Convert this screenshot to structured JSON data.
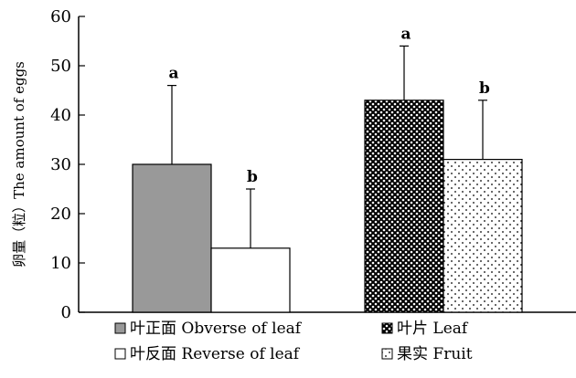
{
  "chart_data": {
    "type": "bar",
    "ylabel": "卵量（粒）The amount of eggs",
    "xlabel": "",
    "ylim": [
      0,
      60
    ],
    "yticks": [
      0,
      10,
      20,
      30,
      40,
      50,
      60
    ],
    "grid": false,
    "legend_placement": "bottom",
    "bars": [
      {
        "name": "叶正面 Obverse of leaf",
        "group": 1,
        "value": 30,
        "error": 16,
        "letter": "a",
        "fill": "gray"
      },
      {
        "name": "叶反面 Reverse of leaf",
        "group": 1,
        "value": 13,
        "error": 12,
        "letter": "b",
        "fill": "white"
      },
      {
        "name": "叶片 Leaf",
        "group": 2,
        "value": 43,
        "error": 11,
        "letter": "a",
        "fill": "crosshatch"
      },
      {
        "name": "果实 Fruit",
        "group": 2,
        "value": 31,
        "error": 12,
        "letter": "b",
        "fill": "dots"
      }
    ],
    "legend": [
      {
        "label": "叶正面 Obverse of leaf",
        "fill": "gray"
      },
      {
        "label": "叶片 Leaf",
        "fill": "crosshatch"
      },
      {
        "label": "叶反面 Reverse of leaf",
        "fill": "white"
      },
      {
        "label": "果实 Fruit",
        "fill": "dots"
      }
    ],
    "colors": {
      "gray": "#999999",
      "white": "#ffffff",
      "axis": "#000000"
    }
  }
}
